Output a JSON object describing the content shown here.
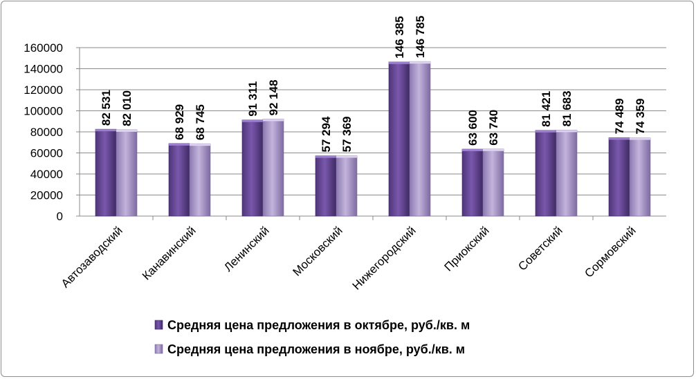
{
  "chart_data": {
    "type": "bar",
    "categories": [
      "Автозаводский",
      "Канавинский",
      "Ленинский",
      "Московский",
      "Нижегородский",
      "Приокский",
      "Советский",
      "Сормовский"
    ],
    "series": [
      {
        "name": "Средняя цена предложения в октябре, руб./кв. м",
        "values": [
          82531,
          68929,
          91311,
          57294,
          146385,
          63600,
          81421,
          74489
        ],
        "labels": [
          "82 531",
          "68 929",
          "91 311",
          "57 294",
          "146 385",
          "63 600",
          "81 421",
          "74 489"
        ],
        "color": "#6f4f9e"
      },
      {
        "name": "Средняя цена предложения в ноябре, руб./кв. м",
        "values": [
          82010,
          68745,
          92148,
          57369,
          146785,
          63740,
          81683,
          74359
        ],
        "labels": [
          "82 010",
          "68 745",
          "92 148",
          "57 369",
          "146 785",
          "63 740",
          "81 683",
          "74 359"
        ],
        "color": "#a996c8"
      }
    ],
    "y_ticks": [
      "0",
      "20000",
      "40000",
      "60000",
      "80000",
      "100000",
      "120000",
      "140000",
      "160000"
    ],
    "ylim": [
      0,
      160000
    ],
    "grid": true,
    "legend_position": "bottom"
  }
}
